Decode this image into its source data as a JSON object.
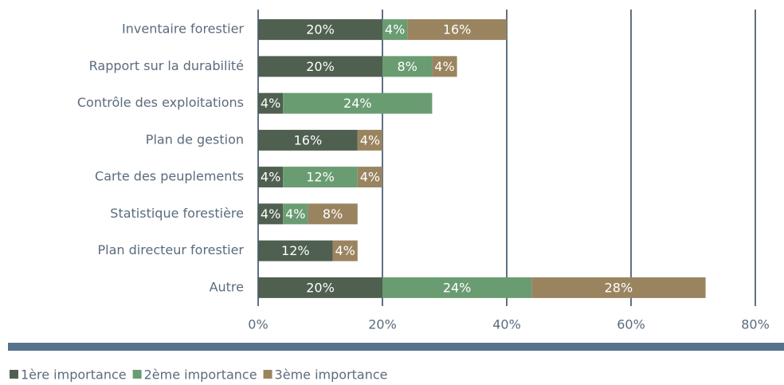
{
  "chart_data": {
    "type": "stacked-bar-horizontal",
    "categories": [
      "Inventaire forestier",
      "Rapport sur la durabilité",
      "Contrôle des exploitations",
      "Plan de gestion",
      "Carte des peuplements",
      "Statistique forestière",
      "Plan directeur forestier",
      "Autre"
    ],
    "series": [
      {
        "name": "1ère importance",
        "color": "#4f5f50",
        "values": [
          20,
          20,
          4,
          16,
          4,
          4,
          12,
          20
        ],
        "value_labels": [
          "20%",
          "20%",
          "4%",
          "16%",
          "4%",
          "4%",
          "12%",
          "20%"
        ]
      },
      {
        "name": "2ème importance",
        "color": "#6a9c72",
        "values": [
          4,
          8,
          24,
          null,
          12,
          4,
          null,
          24
        ],
        "value_labels": [
          "4%",
          "8%",
          "24%",
          null,
          "12%",
          "4%",
          null,
          "24%"
        ]
      },
      {
        "name": "3ème importance",
        "color": "#9a8460",
        "values": [
          16,
          4,
          null,
          4,
          4,
          8,
          4,
          28
        ],
        "value_labels": [
          "16%",
          "4%",
          null,
          "4%",
          "4%",
          "8%",
          "4%",
          "28%"
        ]
      }
    ],
    "xlim": [
      0,
      80
    ],
    "xticks": [
      {
        "value": 0,
        "label": "0%"
      },
      {
        "value": 20,
        "label": "20%"
      },
      {
        "value": 40,
        "label": "40%"
      },
      {
        "value": 60,
        "label": "60%"
      },
      {
        "value": 80,
        "label": "80%"
      }
    ],
    "grid": true,
    "legend": "bottom"
  }
}
